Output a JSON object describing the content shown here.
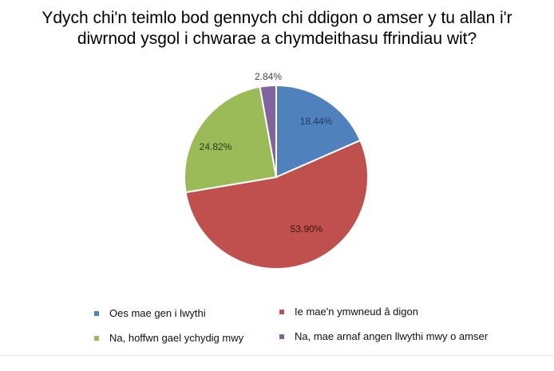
{
  "chart_data": {
    "type": "pie",
    "title_line1": "Ydych chi'n teimlo bod gennych chi ddigon o amser y tu allan i'r",
    "title_line2": "diwrnod ysgol i chwarae a chymdeithasu ffrindiau wit?",
    "slices": [
      {
        "label": "Oes mae gen i lwythi",
        "value": 18.44,
        "display": "18.44%",
        "color": "#4f81bd"
      },
      {
        "label": "Ie mae'n ymwneud â digon",
        "value": 53.9,
        "display": "53.90%",
        "color": "#c0504d"
      },
      {
        "label": "Na, hoffwn gael ychydig mwy",
        "value": 24.82,
        "display": "24.82%",
        "color": "#9bbb59"
      },
      {
        "label": "Na, mae arnaf angen llwythi mwy o amser",
        "value": 2.84,
        "display": "2.84%",
        "color": "#8064a2"
      }
    ],
    "legend_position": "bottom"
  }
}
